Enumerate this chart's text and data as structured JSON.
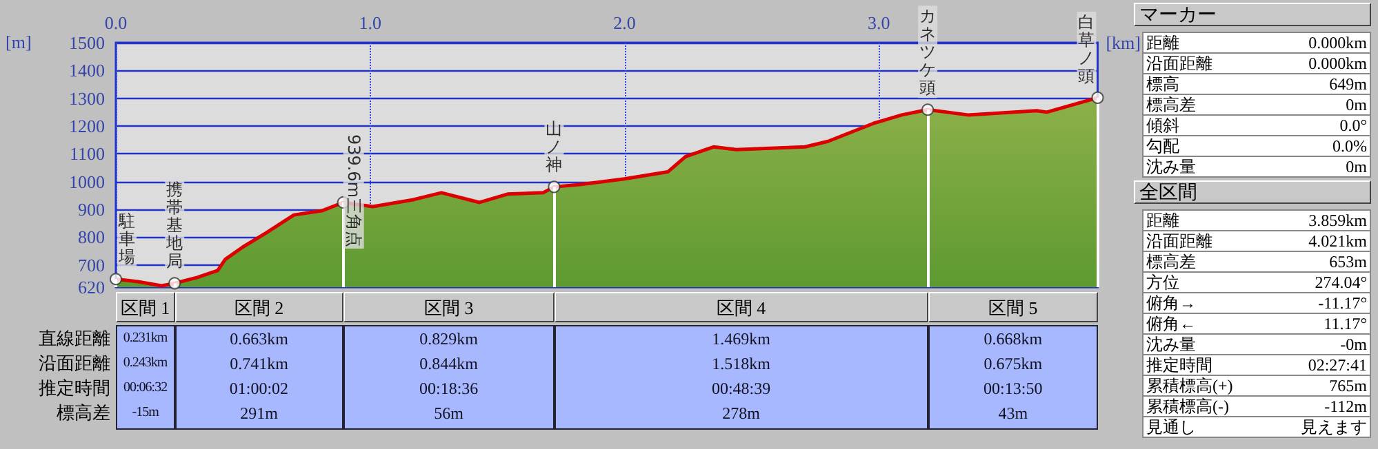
{
  "chart_data": [
    {
      "type": "area",
      "xlabel": "[km]",
      "ylabel": "[m]",
      "xlim": [
        0,
        3.86
      ],
      "ylim": [
        620,
        1500
      ],
      "xticks": [
        {
          "value": 0,
          "label": "0.0"
        },
        {
          "value": 1,
          "label": "1.0"
        },
        {
          "value": 2,
          "label": "2.0"
        },
        {
          "value": 3,
          "label": "3.0"
        }
      ],
      "yticks": [
        620,
        700,
        800,
        900,
        1000,
        1100,
        1200,
        1300,
        1400,
        1500
      ],
      "grid": true,
      "series": [
        {
          "color": "#dd0000",
          "x": [
            0,
            0.087,
            0.18,
            0.231,
            0.32,
            0.4,
            0.43,
            0.5,
            0.59,
            0.7,
            0.81,
            0.894,
            1.01,
            1.17,
            1.28,
            1.43,
            1.54,
            1.68,
            1.723,
            1.83,
            2.0,
            2.17,
            2.24,
            2.35,
            2.44,
            2.71,
            2.8,
            2.98,
            3.09,
            3.192,
            3.35,
            3.62,
            3.66,
            3.86
          ],
          "values": [
            649,
            640,
            625,
            634,
            655,
            680,
            720,
            765,
            815,
            880,
            895,
            925,
            910,
            935,
            960,
            925,
            955,
            960,
            981,
            990,
            1010,
            1035,
            1090,
            1125,
            1115,
            1125,
            1145,
            1210,
            1240,
            1259,
            1240,
            1255,
            1250,
            1302
          ]
        }
      ],
      "annotations": [
        {
          "text": "駐車場",
          "x": 0,
          "y": 649
        },
        {
          "text": "携帯基地局",
          "x": 0.231,
          "y": 634
        },
        {
          "text": "939.6m三角点",
          "x": 0.894,
          "y": 925
        },
        {
          "text": "山ノ神",
          "x": 1.723,
          "y": 981
        },
        {
          "text": "カネツケ頭",
          "x": 3.192,
          "y": 1259
        },
        {
          "text": "白草ノ頭",
          "x": 3.86,
          "y": 1302
        }
      ]
    },
    {
      "type": "other",
      "categories": [
        "区間 1",
        "区間 2",
        "区間 3",
        "区間 4",
        "区間 5"
      ],
      "y_categories": [
        "直線距離",
        "沿面距離",
        "推定時間",
        "標高差"
      ],
      "cell_labels": [
        [
          "0.231km",
          "0.663km",
          "0.829km",
          "1.469km",
          "0.668km"
        ],
        [
          "0.243km",
          "0.741km",
          "0.844km",
          "1.518km",
          "0.675km"
        ],
        [
          "00:06:32",
          "01:00:02",
          "00:18:36",
          "00:48:39",
          "00:13:50"
        ],
        [
          "-15m",
          "291m",
          "56m",
          "278m",
          "43m"
        ]
      ]
    },
    {
      "type": "other",
      "title": "マーカー",
      "y_categories": [
        "距離",
        "沿面距離",
        "標高",
        "標高差",
        "傾斜",
        "勾配",
        "沈み量"
      ],
      "cell_labels": [
        [
          "0.000km"
        ],
        [
          "0.000km"
        ],
        [
          "649m"
        ],
        [
          "0m"
        ],
        [
          "0.0°"
        ],
        [
          "0.0%"
        ],
        [
          "0m"
        ]
      ]
    },
    {
      "type": "other",
      "title": "全区間",
      "y_categories": [
        "距離",
        "沿面距離",
        "標高差",
        "方位",
        "俯角→",
        "俯角←",
        "沈み量",
        "推定時間",
        "累積標高(+)",
        "累積標高(-)",
        "見通し"
      ],
      "cell_labels": [
        [
          "3.859km"
        ],
        [
          "4.021km"
        ],
        [
          "653m"
        ],
        [
          "274.04°"
        ],
        [
          "-11.17°"
        ],
        [
          "11.17°"
        ],
        [
          "-0m"
        ],
        [
          "02:27:41"
        ],
        [
          "765m"
        ],
        [
          "-112m"
        ],
        [
          "見えます"
        ]
      ]
    }
  ]
}
